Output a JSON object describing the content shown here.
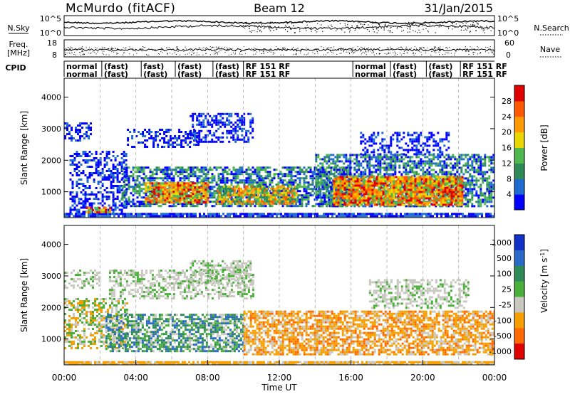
{
  "header": {
    "station": "McMurdo (fitACF)",
    "beam": "Beam 12",
    "date": "31/Jan/2015"
  },
  "noise_panel": {
    "left_label": "N.Sky",
    "right_label": "N.Search",
    "left_ticks": [
      "10^5",
      "10^0"
    ],
    "right_ticks": [
      "10^5",
      "10^0"
    ]
  },
  "freq_panel": {
    "left_label_1": "Freq.",
    "left_label_2": "[MHz]",
    "right_label": "Nave",
    "left_ticks": [
      "18",
      "8"
    ],
    "right_ticks": [
      "60",
      "0"
    ]
  },
  "cpid_panel": {
    "label": "CPID",
    "entries": [
      {
        "lines": [
          "normal",
          "normal"
        ],
        "x": 0.0
      },
      {
        "lines": [
          "(fast)",
          "(fast)"
        ],
        "x": 2.1
      },
      {
        "lines": [
          "fast)",
          "(fast)"
        ],
        "x": 4.3
      },
      {
        "lines": [
          "(fast)",
          "(fast)"
        ],
        "x": 6.2
      },
      {
        "lines": [
          "(fast)",
          "(fast)"
        ],
        "x": 8.3
      },
      {
        "lines": [
          "RF 151 RF",
          "RF 151 RF"
        ],
        "x": 10.0
      },
      {
        "lines": [
          "normal",
          "normal"
        ],
        "x": 16.1
      },
      {
        "lines": [
          "(fast)",
          "(fast)"
        ],
        "x": 18.2
      },
      {
        "lines": [
          "(fast)",
          "(fast)"
        ],
        "x": 20.2
      },
      {
        "lines": [
          "RF 151 RF",
          "RF 151 RF"
        ],
        "x": 22.1
      }
    ]
  },
  "chart_data": [
    {
      "type": "heatmap",
      "parameter": "power",
      "ylabel": "Slant Range [km]",
      "xlabel": "",
      "ylim": [
        180,
        4600
      ],
      "yticks": [
        1000,
        2000,
        3000,
        4000
      ],
      "xlim": [
        0,
        24
      ],
      "colorbar": {
        "label": "Power [dB]",
        "ticks": [
          "4",
          "8",
          "12",
          "16",
          "20",
          "24",
          "28"
        ],
        "tick_values": [
          4,
          8,
          12,
          16,
          20,
          24,
          28
        ],
        "range": [
          0,
          32
        ],
        "colors": [
          "#0000ff",
          "#1e6bd2",
          "#2e8b57",
          "#4fb84f",
          "#e8d800",
          "#ff9a00",
          "#ff5a00",
          "#e00000"
        ]
      },
      "echo_regions": [
        {
          "t0": 0.0,
          "t1": 24.0,
          "r0": 200,
          "r1": 330,
          "level": "ground"
        },
        {
          "t0": 0.3,
          "t1": 3.5,
          "r0": 330,
          "r1": 800,
          "level": "low"
        },
        {
          "t0": 0.3,
          "t1": 3.5,
          "r0": 800,
          "r1": 2300,
          "level": "low"
        },
        {
          "t0": 0.0,
          "t1": 1.5,
          "r0": 2600,
          "r1": 3200,
          "level": "low"
        },
        {
          "t0": 1.2,
          "t1": 2.6,
          "r0": 350,
          "r1": 520,
          "level": "peak"
        },
        {
          "t0": 3.2,
          "t1": 16.0,
          "r0": 580,
          "r1": 1800,
          "level": "mid"
        },
        {
          "t0": 3.5,
          "t1": 7.5,
          "r0": 2400,
          "r1": 3000,
          "level": "low"
        },
        {
          "t0": 7.0,
          "t1": 10.5,
          "r0": 2600,
          "r1": 3500,
          "level": "low"
        },
        {
          "t0": 4.5,
          "t1": 8.0,
          "r0": 650,
          "r1": 1300,
          "level": "peak"
        },
        {
          "t0": 8.5,
          "t1": 13.0,
          "r0": 600,
          "r1": 1200,
          "level": "high"
        },
        {
          "t0": 14.0,
          "t1": 24.0,
          "r0": 560,
          "r1": 2200,
          "level": "mid"
        },
        {
          "t0": 15.0,
          "t1": 22.2,
          "r0": 580,
          "r1": 1500,
          "level": "peak"
        },
        {
          "t0": 16.5,
          "t1": 21.5,
          "r0": 2200,
          "r1": 2900,
          "level": "low"
        }
      ]
    },
    {
      "type": "heatmap",
      "parameter": "velocity",
      "ylabel": "Slant Range [km]",
      "xlabel": "Time UT",
      "ylim": [
        180,
        4600
      ],
      "yticks": [
        1000,
        2000,
        3000,
        4000
      ],
      "xlim": [
        0,
        24
      ],
      "xticks": [
        "00:00",
        "04:00",
        "08:00",
        "12:00",
        "16:00",
        "20:00",
        "00:00"
      ],
      "colorbar": {
        "label": "Velocity [m s^-1]",
        "ticks": [
          "1000",
          "500",
          "100",
          "25",
          "-25",
          "-100",
          "-500",
          "-1000"
        ],
        "colors": [
          "#1030c8",
          "#2a6ac8",
          "#2e8b57",
          "#4ab03a",
          "#c8c8c0",
          "#f5a000",
          "#ff6a00",
          "#e00000"
        ]
      },
      "echo_regions": [
        {
          "t0": 0.0,
          "t1": 24.0,
          "r0": 200,
          "r1": 300,
          "level": "ground"
        },
        {
          "t0": 0.0,
          "t1": 3.5,
          "r0": 700,
          "r1": 2300,
          "level": "neg-small"
        },
        {
          "t0": 0.0,
          "t1": 2.0,
          "r0": 2600,
          "r1": 3200,
          "level": "neutral"
        },
        {
          "t0": 2.3,
          "t1": 10.0,
          "r0": 600,
          "r1": 1800,
          "level": "pos-mid"
        },
        {
          "t0": 2.5,
          "t1": 10.5,
          "r0": 2300,
          "r1": 3200,
          "level": "neutral"
        },
        {
          "t0": 7.0,
          "t1": 10.5,
          "r0": 2700,
          "r1": 3500,
          "level": "neutral"
        },
        {
          "t0": 10.0,
          "t1": 24.0,
          "r0": 500,
          "r1": 1900,
          "level": "neg-mid"
        },
        {
          "t0": 17.0,
          "t1": 22.5,
          "r0": 2000,
          "r1": 2900,
          "level": "neutral"
        }
      ]
    }
  ]
}
